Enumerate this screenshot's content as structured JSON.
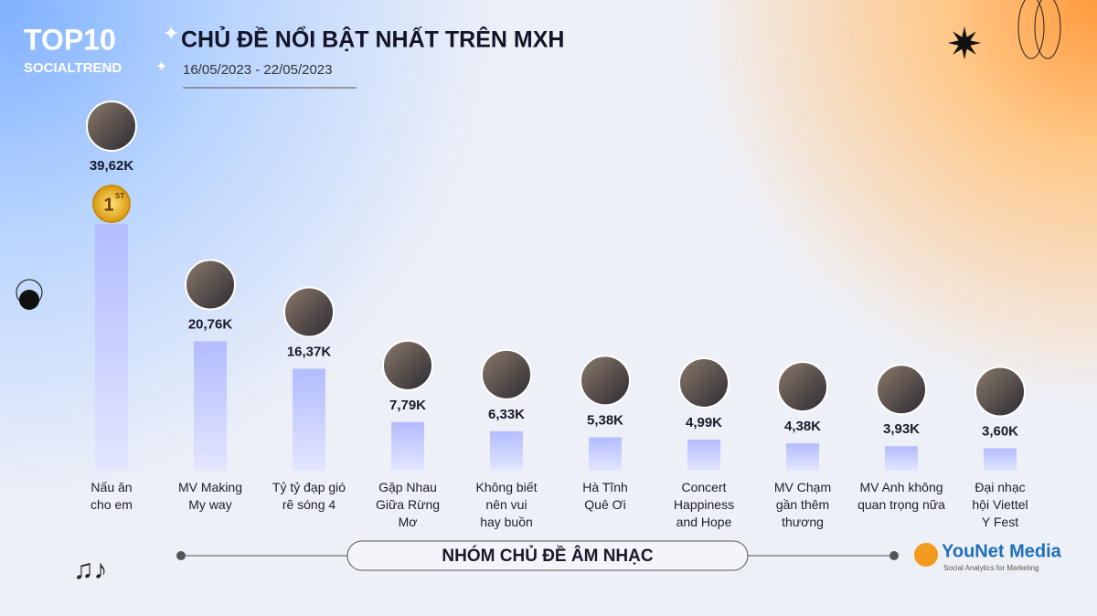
{
  "brand": {
    "top": "TOP10",
    "sub": "SOCIALTREND"
  },
  "chart_data": {
    "type": "bar",
    "title": "CHỦ ĐỀ NỔI BẬT NHẤT TRÊN MXH",
    "subtitle": "16/05/2023 - 22/05/2023",
    "categories": [
      "Nấu ăn\ncho em",
      "MV Making\nMy way",
      "Tỷ tỷ đạp gió\nrẽ sóng 4",
      "Gặp Nhau\nGiữa Rừng\nMơ",
      "Không biết\nnên vui\nhay buồn",
      "Hà Tĩnh\nQuê Ơi",
      "Concert\nHappiness\nand Hope",
      "MV Chạm\ngần thêm\nthương",
      "MV Anh không\nquan trọng nữa",
      "Đại nhạc\nhội Viettel\nY Fest"
    ],
    "values": [
      39.62,
      20.76,
      16.37,
      7.79,
      6.33,
      5.38,
      4.99,
      4.38,
      3.93,
      3.6
    ],
    "value_labels": [
      "39,62K",
      "20,76K",
      "16,37K",
      "7,79K",
      "6,33K",
      "5,38K",
      "4,99K",
      "4,38K",
      "3,93K",
      "3,60K"
    ],
    "color": "#b7bfff",
    "badge": {
      "number": "1",
      "suffix": "ST"
    },
    "group_label": "NHÓM CHỦ ĐỀ ÂM NHẠC"
  },
  "logo": {
    "name": "YouNet Media",
    "tagline": "Social Analytics for Marketing"
  }
}
